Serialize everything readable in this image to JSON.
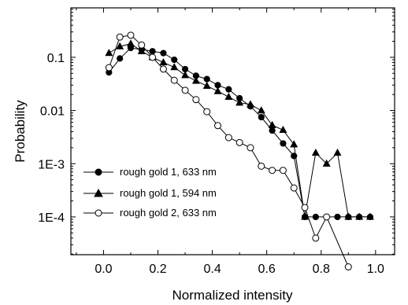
{
  "chart_data": {
    "type": "scatter",
    "xlabel": "Normalized intensity",
    "ylabel": "Probability",
    "x_scale": "linear",
    "y_scale": "log",
    "xlim": [
      -0.12,
      1.07
    ],
    "ylim": [
      1.95e-05,
      0.85
    ],
    "x_ticks": [
      0.0,
      0.2,
      0.4,
      0.6,
      0.8,
      1.0
    ],
    "x_tick_labels": [
      "0.0",
      "0.2",
      "0.4",
      "0.6",
      "0.8",
      "1.0"
    ],
    "y_ticks": [
      0.0001,
      0.001,
      0.01,
      0.1
    ],
    "y_tick_labels": [
      "1E-4",
      "1E-3",
      "0.01",
      "0.1"
    ],
    "grid": false,
    "legend_position": "bottom-left",
    "series": [
      {
        "name": "rough gold 1, 633 nm",
        "marker": "filled-circle",
        "x": [
          0.02,
          0.06,
          0.1,
          0.14,
          0.18,
          0.22,
          0.26,
          0.3,
          0.34,
          0.38,
          0.42,
          0.46,
          0.5,
          0.54,
          0.58,
          0.62,
          0.66,
          0.7,
          0.74,
          0.78,
          0.82,
          0.86,
          0.9,
          0.94,
          0.98
        ],
        "y": [
          0.052,
          0.095,
          0.15,
          0.14,
          0.13,
          0.12,
          0.09,
          0.06,
          0.045,
          0.039,
          0.03,
          0.025,
          0.017,
          0.012,
          0.0075,
          0.0042,
          0.0024,
          0.0014,
          0.0001,
          0.0001,
          0.0001,
          0.0001,
          0.0001,
          0.0001,
          0.0001
        ]
      },
      {
        "name": "rough gold 1, 594 nm",
        "marker": "filled-triangle",
        "x": [
          0.02,
          0.06,
          0.1,
          0.14,
          0.18,
          0.22,
          0.26,
          0.3,
          0.34,
          0.38,
          0.42,
          0.46,
          0.5,
          0.54,
          0.58,
          0.62,
          0.66,
          0.7,
          0.74,
          0.78,
          0.82,
          0.86,
          0.9,
          0.94,
          0.98
        ],
        "y": [
          0.12,
          0.16,
          0.18,
          0.13,
          0.1,
          0.08,
          0.065,
          0.046,
          0.036,
          0.029,
          0.023,
          0.018,
          0.014,
          0.013,
          0.01,
          0.0053,
          0.0043,
          0.0023,
          0.0001,
          0.0016,
          0.001,
          0.0016,
          0.0001,
          0.0001,
          0.0001
        ]
      },
      {
        "name": "rough gold 2, 633 nm",
        "marker": "open-circle",
        "x": [
          0.02,
          0.06,
          0.1,
          0.14,
          0.18,
          0.22,
          0.26,
          0.3,
          0.34,
          0.38,
          0.42,
          0.46,
          0.5,
          0.54,
          0.58,
          0.62,
          0.66,
          0.7,
          0.74,
          0.78,
          0.82,
          0.9
        ],
        "y": [
          0.064,
          0.24,
          0.26,
          0.17,
          0.1,
          0.06,
          0.037,
          0.024,
          0.016,
          0.0095,
          0.0052,
          0.0031,
          0.0025,
          0.002,
          0.0009,
          0.00075,
          0.00075,
          0.00035,
          0.00015,
          4e-05,
          0.0001,
          1.15e-05
        ]
      }
    ]
  }
}
